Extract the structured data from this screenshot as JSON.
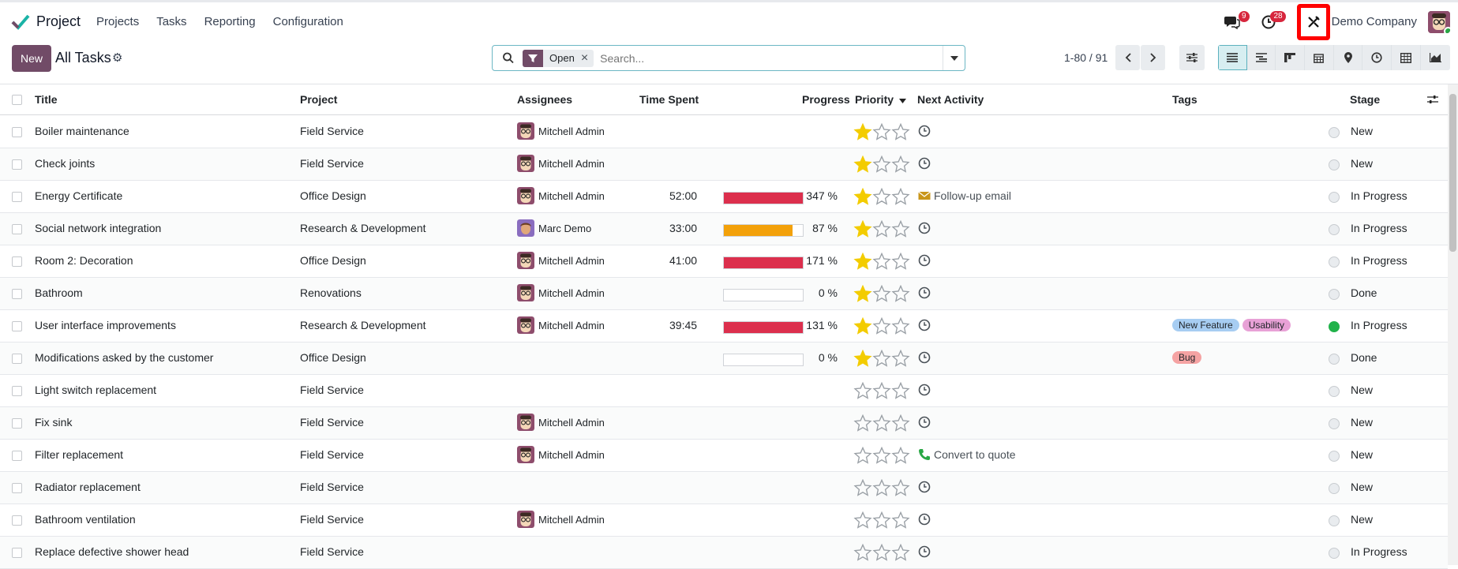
{
  "app": {
    "name": "Project"
  },
  "menu": [
    "Projects",
    "Tasks",
    "Reporting",
    "Configuration"
  ],
  "systray": {
    "messages_badge": "9",
    "activities_badge": "28",
    "company": "Demo Company"
  },
  "control": {
    "new_label": "New",
    "title": "All Tasks",
    "facet": "Open",
    "search_placeholder": "Search...",
    "pager": "1-80 / 91"
  },
  "columns": [
    "Title",
    "Project",
    "Assignees",
    "Time Spent",
    "Progress",
    "Priority",
    "Next Activity",
    "Tags",
    "Stage"
  ],
  "colors": {
    "brand": "#714b67",
    "progress_red": "#dc2f4d",
    "progress_orange": "#f3a10a",
    "star": "#f3cc00"
  },
  "tasks": [
    {
      "title": "Boiler maintenance",
      "project": "Field Service",
      "assignee": "Mitchell Admin",
      "time": "",
      "progress": null,
      "progress_label": "",
      "priority": 1,
      "activity": "",
      "activity_icon": "clock-icon",
      "tags": [],
      "state": "grey",
      "stage": "New"
    },
    {
      "title": "Check joints",
      "project": "Field Service",
      "assignee": "Mitchell Admin",
      "time": "",
      "progress": null,
      "progress_label": "",
      "priority": 1,
      "activity": "",
      "activity_icon": "clock-icon",
      "tags": [],
      "state": "grey",
      "stage": "New"
    },
    {
      "title": "Energy Certificate",
      "project": "Office Design",
      "assignee": "Mitchell Admin",
      "time": "52:00",
      "progress": 347,
      "progress_label": "347 %",
      "priority": 1,
      "activity": "Follow-up email",
      "activity_icon": "envelope-icon",
      "tags": [],
      "state": "grey",
      "stage": "In Progress"
    },
    {
      "title": "Social network integration",
      "project": "Research & Development",
      "assignee": "Marc Demo",
      "time": "33:00",
      "progress": 87,
      "progress_label": "87 %",
      "priority": 1,
      "activity": "",
      "activity_icon": "clock-icon",
      "tags": [],
      "state": "grey",
      "stage": "In Progress"
    },
    {
      "title": "Room 2: Decoration",
      "project": "Office Design",
      "assignee": "Mitchell Admin",
      "time": "41:00",
      "progress": 171,
      "progress_label": "171 %",
      "priority": 1,
      "activity": "",
      "activity_icon": "clock-icon",
      "tags": [],
      "state": "grey",
      "stage": "In Progress"
    },
    {
      "title": "Bathroom",
      "project": "Renovations",
      "assignee": "Mitchell Admin",
      "time": "",
      "progress": 0,
      "progress_label": "0 %",
      "priority": 1,
      "activity": "",
      "activity_icon": "clock-icon",
      "tags": [],
      "state": "grey",
      "stage": "Done"
    },
    {
      "title": "User interface improvements",
      "project": "Research & Development",
      "assignee": "Mitchell Admin",
      "time": "39:45",
      "progress": 131,
      "progress_label": "131 %",
      "priority": 1,
      "activity": "",
      "activity_icon": "clock-icon",
      "tags": [
        {
          "name": "New Feature",
          "color": "#a7cdf2"
        },
        {
          "name": "Usability",
          "color": "#e8a1d6"
        }
      ],
      "state": "green",
      "stage": "In Progress"
    },
    {
      "title": "Modifications asked by the customer",
      "project": "Office Design",
      "assignee": "",
      "time": "",
      "progress": 0,
      "progress_label": "0 %",
      "priority": 1,
      "activity": "",
      "activity_icon": "clock-icon",
      "tags": [
        {
          "name": "Bug",
          "color": "#f5a3a3"
        }
      ],
      "state": "grey",
      "stage": "Done"
    },
    {
      "title": "Light switch replacement",
      "project": "Field Service",
      "assignee": "",
      "time": "",
      "progress": null,
      "progress_label": "",
      "priority": 0,
      "activity": "",
      "activity_icon": "clock-icon",
      "tags": [],
      "state": "grey",
      "stage": "New"
    },
    {
      "title": "Fix sink",
      "project": "Field Service",
      "assignee": "Mitchell Admin",
      "time": "",
      "progress": null,
      "progress_label": "",
      "priority": 0,
      "activity": "",
      "activity_icon": "clock-icon",
      "tags": [],
      "state": "grey",
      "stage": "New"
    },
    {
      "title": "Filter replacement",
      "project": "Field Service",
      "assignee": "Mitchell Admin",
      "time": "",
      "progress": null,
      "progress_label": "",
      "priority": 0,
      "activity": "Convert to quote",
      "activity_icon": "phone-icon",
      "tags": [],
      "state": "grey",
      "stage": "New"
    },
    {
      "title": "Radiator replacement",
      "project": "Field Service",
      "assignee": "",
      "time": "",
      "progress": null,
      "progress_label": "",
      "priority": 0,
      "activity": "",
      "activity_icon": "clock-icon",
      "tags": [],
      "state": "grey",
      "stage": "New"
    },
    {
      "title": "Bathroom ventilation",
      "project": "Field Service",
      "assignee": "Mitchell Admin",
      "time": "",
      "progress": null,
      "progress_label": "",
      "priority": 0,
      "activity": "",
      "activity_icon": "clock-icon",
      "tags": [],
      "state": "grey",
      "stage": "New"
    },
    {
      "title": "Replace defective shower head",
      "project": "Field Service",
      "assignee": "",
      "time": "",
      "progress": null,
      "progress_label": "",
      "priority": 0,
      "activity": "",
      "activity_icon": "clock-icon",
      "tags": [],
      "state": "grey",
      "stage": "In Progress"
    }
  ]
}
